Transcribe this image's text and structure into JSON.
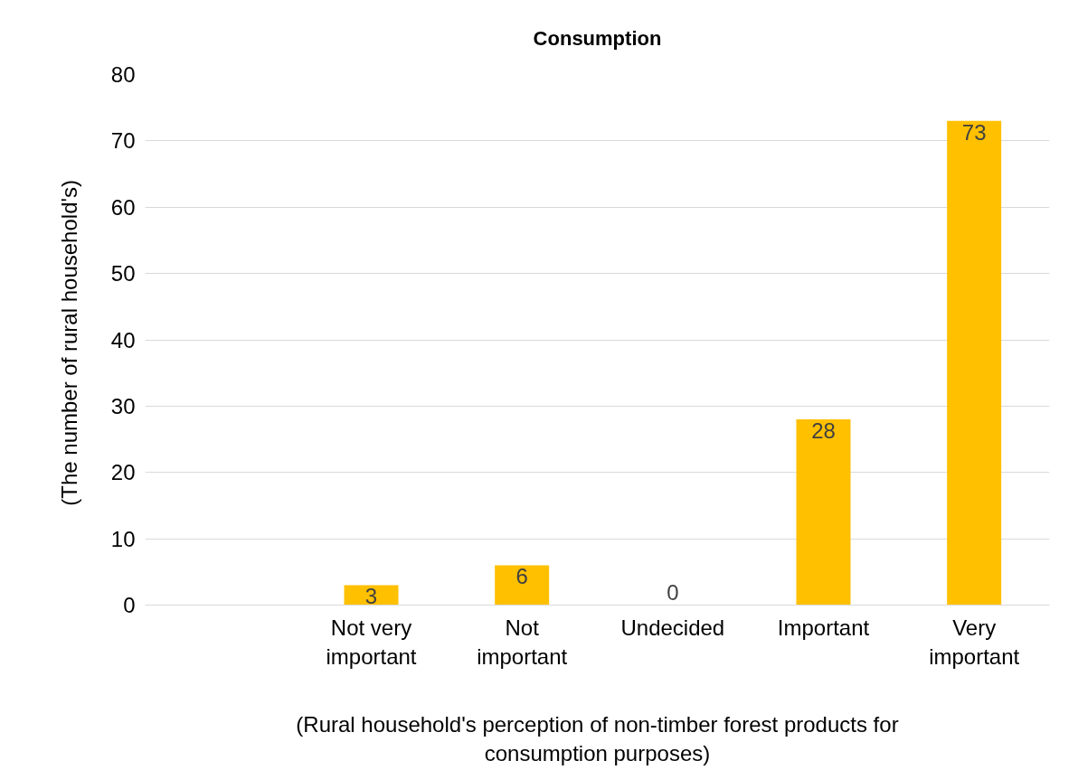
{
  "chart_data": {
    "type": "bar",
    "title": "Consumption",
    "xlabel": "(Rural household's perception of non-timber forest products for consumption purposes)",
    "ylabel": "(The  number of rural household's)",
    "categories": [
      null,
      "Not very important",
      "Not important",
      "Undecided",
      "Important",
      "Very important"
    ],
    "values": [
      null,
      3,
      6,
      0,
      28,
      73
    ],
    "color": "#ffc000",
    "ylim": [
      0,
      80
    ],
    "yticks": [
      0,
      10,
      20,
      30,
      40,
      50,
      60,
      70,
      80
    ],
    "grid": "y",
    "data_labels": true
  }
}
